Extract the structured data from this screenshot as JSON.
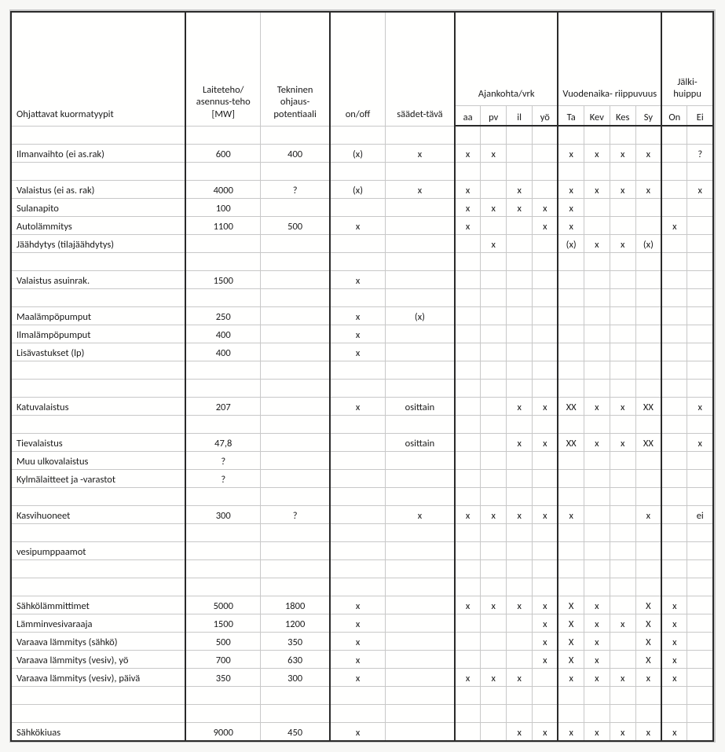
{
  "headers": {
    "col0": "Ohjattavat kuormatyypit",
    "col1": "Laiteteho/\nasennus-teho\n[MW]",
    "col2": "Tekninen\nohjaus-\npotentiaali",
    "col3": "on/off",
    "col4": "säädet-tävä",
    "grpA": "Ajankohta/vrk",
    "grpB": "Vuodenaika-\nriippuvuus",
    "grpC": "Jälki-\nhuippu",
    "a0": "aa",
    "a1": "pv",
    "a2": "il",
    "a3": "yö",
    "b0": "Ta",
    "b1": "Kev",
    "b2": "Kes",
    "b3": "Sy",
    "c0": "On",
    "c1": "Ei"
  },
  "rows": [
    {
      "label": "",
      "mw": "",
      "pot": "",
      "on": "",
      "adj": "",
      "a": [
        "",
        "",
        "",
        ""
      ],
      "b": [
        "",
        "",
        "",
        ""
      ],
      "c": [
        "",
        ""
      ]
    },
    {
      "label": "Ilmanvaihto (ei as.rak)",
      "mw": "600",
      "pot": "400",
      "on": "(x)",
      "adj": "x",
      "a": [
        "x",
        "x",
        "",
        ""
      ],
      "b": [
        "x",
        "x",
        "x",
        "x"
      ],
      "c": [
        "",
        "?"
      ]
    },
    {
      "label": "",
      "mw": "",
      "pot": "",
      "on": "",
      "adj": "",
      "a": [
        "",
        "",
        "",
        ""
      ],
      "b": [
        "",
        "",
        "",
        ""
      ],
      "c": [
        "",
        ""
      ]
    },
    {
      "label": "Valaistus (ei as. rak)",
      "mw": "4000",
      "pot": "?",
      "on": "(x)",
      "adj": "x",
      "a": [
        "x",
        "",
        "x",
        ""
      ],
      "b": [
        "x",
        "x",
        "x",
        "x"
      ],
      "c": [
        "",
        "x"
      ]
    },
    {
      "label": "Sulanapito",
      "mw": "100",
      "pot": "",
      "on": "",
      "adj": "",
      "a": [
        "x",
        "x",
        "x",
        "x"
      ],
      "b": [
        "x",
        "",
        "",
        ""
      ],
      "c": [
        "",
        ""
      ]
    },
    {
      "label": "Autolämmitys",
      "mw": "1100",
      "pot": "500",
      "on": "x",
      "adj": "",
      "a": [
        "x",
        "",
        "",
        "x"
      ],
      "b": [
        "x",
        "",
        "",
        ""
      ],
      "c": [
        "x",
        ""
      ]
    },
    {
      "label": "Jäähdytys (tilajäähdytys)",
      "mw": "",
      "pot": "",
      "on": "",
      "adj": "",
      "a": [
        "",
        "x",
        "",
        ""
      ],
      "b": [
        "(x)",
        "x",
        "x",
        "(x)"
      ],
      "c": [
        "",
        ""
      ]
    },
    {
      "label": "",
      "mw": "",
      "pot": "",
      "on": "",
      "adj": "",
      "a": [
        "",
        "",
        "",
        ""
      ],
      "b": [
        "",
        "",
        "",
        ""
      ],
      "c": [
        "",
        ""
      ]
    },
    {
      "label": "Valaistus asuinrak.",
      "mw": "1500",
      "pot": "",
      "on": "x",
      "adj": "",
      "a": [
        "",
        "",
        "",
        ""
      ],
      "b": [
        "",
        "",
        "",
        ""
      ],
      "c": [
        "",
        ""
      ]
    },
    {
      "label": "",
      "mw": "",
      "pot": "",
      "on": "",
      "adj": "",
      "a": [
        "",
        "",
        "",
        ""
      ],
      "b": [
        "",
        "",
        "",
        ""
      ],
      "c": [
        "",
        ""
      ]
    },
    {
      "label": "Maalämpöpumput",
      "mw": "250",
      "pot": "",
      "on": "x",
      "adj": "(x)",
      "a": [
        "",
        "",
        "",
        ""
      ],
      "b": [
        "",
        "",
        "",
        ""
      ],
      "c": [
        "",
        ""
      ]
    },
    {
      "label": "Ilmalämpöpumput",
      "mw": "400",
      "pot": "",
      "on": "x",
      "adj": "",
      "a": [
        "",
        "",
        "",
        ""
      ],
      "b": [
        "",
        "",
        "",
        ""
      ],
      "c": [
        "",
        ""
      ]
    },
    {
      "label": "Lisävastukset (lp)",
      "mw": "400",
      "pot": "",
      "on": "x",
      "adj": "",
      "a": [
        "",
        "",
        "",
        ""
      ],
      "b": [
        "",
        "",
        "",
        ""
      ],
      "c": [
        "",
        ""
      ]
    },
    {
      "label": "",
      "mw": "",
      "pot": "",
      "on": "",
      "adj": "",
      "a": [
        "",
        "",
        "",
        ""
      ],
      "b": [
        "",
        "",
        "",
        ""
      ],
      "c": [
        "",
        ""
      ]
    },
    {
      "label": "",
      "mw": "",
      "pot": "",
      "on": "",
      "adj": "",
      "a": [
        "",
        "",
        "",
        ""
      ],
      "b": [
        "",
        "",
        "",
        ""
      ],
      "c": [
        "",
        ""
      ]
    },
    {
      "label": "Katuvalaistus",
      "mw": "207",
      "pot": "",
      "on": "x",
      "adj": "osittain",
      "a": [
        "",
        "",
        "x",
        "x"
      ],
      "b": [
        "XX",
        "x",
        "x",
        "XX"
      ],
      "c": [
        "",
        "x"
      ]
    },
    {
      "label": "",
      "mw": "",
      "pot": "",
      "on": "",
      "adj": "",
      "a": [
        "",
        "",
        "",
        ""
      ],
      "b": [
        "",
        "",
        "",
        ""
      ],
      "c": [
        "",
        ""
      ]
    },
    {
      "label": "Tievalaistus",
      "mw": "47,8",
      "pot": "",
      "on": "",
      "adj": "osittain",
      "a": [
        "",
        "",
        "x",
        "x"
      ],
      "b": [
        "XX",
        "x",
        "x",
        "XX"
      ],
      "c": [
        "",
        "x"
      ]
    },
    {
      "label": "Muu ulkovalaistus",
      "mw": "?",
      "pot": "",
      "on": "",
      "adj": "",
      "a": [
        "",
        "",
        "",
        ""
      ],
      "b": [
        "",
        "",
        "",
        ""
      ],
      "c": [
        "",
        ""
      ]
    },
    {
      "label": "Kylmälaitteet ja -varastot",
      "mw": "?",
      "pot": "",
      "on": "",
      "adj": "",
      "a": [
        "",
        "",
        "",
        ""
      ],
      "b": [
        "",
        "",
        "",
        ""
      ],
      "c": [
        "",
        ""
      ]
    },
    {
      "label": "",
      "mw": "",
      "pot": "",
      "on": "",
      "adj": "",
      "a": [
        "",
        "",
        "",
        ""
      ],
      "b": [
        "",
        "",
        "",
        ""
      ],
      "c": [
        "",
        ""
      ]
    },
    {
      "label": "Kasvihuoneet",
      "mw": "300",
      "pot": "?",
      "on": "",
      "adj": "x",
      "a": [
        "x",
        "x",
        "x",
        "x"
      ],
      "b": [
        "x",
        "",
        "",
        "x"
      ],
      "c": [
        "",
        "ei"
      ]
    },
    {
      "label": "",
      "mw": "",
      "pot": "",
      "on": "",
      "adj": "",
      "a": [
        "",
        "",
        "",
        ""
      ],
      "b": [
        "",
        "",
        "",
        ""
      ],
      "c": [
        "",
        ""
      ]
    },
    {
      "label": "vesipumppaamot",
      "mw": "",
      "pot": "",
      "on": "",
      "adj": "",
      "a": [
        "",
        "",
        "",
        ""
      ],
      "b": [
        "",
        "",
        "",
        ""
      ],
      "c": [
        "",
        ""
      ]
    },
    {
      "label": "",
      "mw": "",
      "pot": "",
      "on": "",
      "adj": "",
      "a": [
        "",
        "",
        "",
        ""
      ],
      "b": [
        "",
        "",
        "",
        ""
      ],
      "c": [
        "",
        ""
      ]
    },
    {
      "label": "",
      "mw": "",
      "pot": "",
      "on": "",
      "adj": "",
      "a": [
        "",
        "",
        "",
        ""
      ],
      "b": [
        "",
        "",
        "",
        ""
      ],
      "c": [
        "",
        ""
      ]
    },
    {
      "label": "Sähkölämmittimet",
      "mw": "5000",
      "pot": "1800",
      "on": "x",
      "adj": "",
      "a": [
        "x",
        "x",
        "x",
        "x"
      ],
      "b": [
        "X",
        "x",
        "",
        "X"
      ],
      "c": [
        "x",
        ""
      ]
    },
    {
      "label": "Lämminvesivaraaja",
      "mw": "1500",
      "pot": "1200",
      "on": "x",
      "adj": "",
      "a": [
        "",
        "",
        "",
        "x"
      ],
      "b": [
        "X",
        "x",
        "x",
        "X"
      ],
      "c": [
        "x",
        ""
      ]
    },
    {
      "label": "Varaava lämmitys (sähkö)",
      "mw": "500",
      "pot": "350",
      "on": "x",
      "adj": "",
      "a": [
        "",
        "",
        "",
        "x"
      ],
      "b": [
        "X",
        "x",
        "",
        "X"
      ],
      "c": [
        "x",
        ""
      ]
    },
    {
      "label": "Varaava lämmitys (vesiv), yö",
      "mw": "700",
      "pot": "630",
      "on": "x",
      "adj": "",
      "a": [
        "",
        "",
        "",
        "x"
      ],
      "b": [
        "X",
        "x",
        "",
        "X"
      ],
      "c": [
        "x",
        ""
      ]
    },
    {
      "label": "Varaava lämmitys (vesiv), päivä",
      "mw": "350",
      "pot": "300",
      "on": "x",
      "adj": "",
      "a": [
        "x",
        "x",
        "x",
        ""
      ],
      "b": [
        "x",
        "x",
        "x",
        "x"
      ],
      "c": [
        "x",
        ""
      ]
    },
    {
      "label": "",
      "mw": "",
      "pot": "",
      "on": "",
      "adj": "",
      "a": [
        "",
        "",
        "",
        ""
      ],
      "b": [
        "",
        "",
        "",
        ""
      ],
      "c": [
        "",
        ""
      ]
    },
    {
      "label": "",
      "mw": "",
      "pot": "",
      "on": "",
      "adj": "",
      "a": [
        "",
        "",
        "",
        ""
      ],
      "b": [
        "",
        "",
        "",
        ""
      ],
      "c": [
        "",
        ""
      ]
    },
    {
      "label": "Sähkökiuas",
      "mw": "9000",
      "pot": "450",
      "on": "x",
      "adj": "",
      "a": [
        "",
        "",
        "x",
        "x"
      ],
      "b": [
        "x",
        "x",
        "x",
        "x"
      ],
      "c": [
        "x",
        ""
      ]
    }
  ]
}
